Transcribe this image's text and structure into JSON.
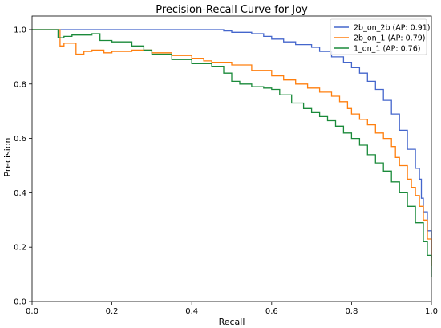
{
  "chart_data": {
    "type": "line",
    "title": "Precision-Recall Curve for Joy",
    "xlabel": "Recall",
    "ylabel": "Precision",
    "xlim": [
      0.0,
      1.0
    ],
    "ylim": [
      0.0,
      1.05
    ],
    "xticks": [
      "0.0",
      "0.2",
      "0.4",
      "0.6",
      "0.8",
      "1.0"
    ],
    "yticks": [
      "0.0",
      "0.2",
      "0.4",
      "0.6",
      "0.8",
      "1.0"
    ],
    "grid": false,
    "legend_position": "top-right",
    "series": [
      {
        "name": "2b_on_2b (AP: 0.91)",
        "color": "#4466cc",
        "points": [
          [
            0.0,
            1.0
          ],
          [
            0.1,
            1.0
          ],
          [
            0.2,
            1.0
          ],
          [
            0.3,
            1.0
          ],
          [
            0.4,
            1.0
          ],
          [
            0.45,
            1.0
          ],
          [
            0.48,
            0.995
          ],
          [
            0.5,
            0.99
          ],
          [
            0.55,
            0.985
          ],
          [
            0.58,
            0.975
          ],
          [
            0.6,
            0.965
          ],
          [
            0.63,
            0.955
          ],
          [
            0.66,
            0.945
          ],
          [
            0.7,
            0.935
          ],
          [
            0.72,
            0.92
          ],
          [
            0.75,
            0.9
          ],
          [
            0.78,
            0.88
          ],
          [
            0.8,
            0.86
          ],
          [
            0.82,
            0.84
          ],
          [
            0.84,
            0.81
          ],
          [
            0.86,
            0.78
          ],
          [
            0.88,
            0.74
          ],
          [
            0.9,
            0.69
          ],
          [
            0.92,
            0.63
          ],
          [
            0.94,
            0.56
          ],
          [
            0.96,
            0.49
          ],
          [
            0.97,
            0.45
          ],
          [
            0.975,
            0.38
          ],
          [
            0.98,
            0.33
          ],
          [
            0.99,
            0.26
          ],
          [
            1.0,
            0.16
          ]
        ]
      },
      {
        "name": "2b_on_1 (AP: 0.79)",
        "color": "#ff7f0e",
        "points": [
          [
            0.0,
            1.0
          ],
          [
            0.055,
            1.0
          ],
          [
            0.07,
            0.94
          ],
          [
            0.08,
            0.95
          ],
          [
            0.1,
            0.95
          ],
          [
            0.11,
            0.91
          ],
          [
            0.13,
            0.92
          ],
          [
            0.15,
            0.925
          ],
          [
            0.18,
            0.915
          ],
          [
            0.2,
            0.92
          ],
          [
            0.25,
            0.925
          ],
          [
            0.3,
            0.915
          ],
          [
            0.35,
            0.905
          ],
          [
            0.4,
            0.895
          ],
          [
            0.43,
            0.885
          ],
          [
            0.45,
            0.88
          ],
          [
            0.5,
            0.87
          ],
          [
            0.55,
            0.85
          ],
          [
            0.6,
            0.83
          ],
          [
            0.63,
            0.815
          ],
          [
            0.66,
            0.8
          ],
          [
            0.69,
            0.785
          ],
          [
            0.72,
            0.77
          ],
          [
            0.75,
            0.755
          ],
          [
            0.77,
            0.735
          ],
          [
            0.79,
            0.71
          ],
          [
            0.8,
            0.69
          ],
          [
            0.82,
            0.67
          ],
          [
            0.84,
            0.65
          ],
          [
            0.86,
            0.62
          ],
          [
            0.88,
            0.6
          ],
          [
            0.9,
            0.57
          ],
          [
            0.91,
            0.53
          ],
          [
            0.92,
            0.5
          ],
          [
            0.94,
            0.45
          ],
          [
            0.95,
            0.42
          ],
          [
            0.96,
            0.39
          ],
          [
            0.97,
            0.35
          ],
          [
            0.98,
            0.3
          ],
          [
            0.99,
            0.23
          ],
          [
            1.0,
            0.13
          ]
        ]
      },
      {
        "name": "1_on_1 (AP: 0.76)",
        "color": "#1a8a3a",
        "points": [
          [
            0.0,
            1.0
          ],
          [
            0.06,
            1.0
          ],
          [
            0.065,
            0.97
          ],
          [
            0.08,
            0.975
          ],
          [
            0.1,
            0.98
          ],
          [
            0.15,
            0.985
          ],
          [
            0.17,
            0.96
          ],
          [
            0.2,
            0.955
          ],
          [
            0.25,
            0.94
          ],
          [
            0.28,
            0.925
          ],
          [
            0.3,
            0.91
          ],
          [
            0.35,
            0.89
          ],
          [
            0.4,
            0.875
          ],
          [
            0.45,
            0.865
          ],
          [
            0.48,
            0.84
          ],
          [
            0.5,
            0.81
          ],
          [
            0.52,
            0.8
          ],
          [
            0.55,
            0.79
          ],
          [
            0.58,
            0.785
          ],
          [
            0.6,
            0.78
          ],
          [
            0.62,
            0.76
          ],
          [
            0.65,
            0.73
          ],
          [
            0.68,
            0.71
          ],
          [
            0.7,
            0.695
          ],
          [
            0.72,
            0.68
          ],
          [
            0.74,
            0.665
          ],
          [
            0.76,
            0.645
          ],
          [
            0.78,
            0.62
          ],
          [
            0.8,
            0.6
          ],
          [
            0.82,
            0.575
          ],
          [
            0.84,
            0.54
          ],
          [
            0.86,
            0.51
          ],
          [
            0.88,
            0.48
          ],
          [
            0.9,
            0.44
          ],
          [
            0.92,
            0.4
          ],
          [
            0.94,
            0.35
          ],
          [
            0.96,
            0.29
          ],
          [
            0.98,
            0.22
          ],
          [
            0.99,
            0.17
          ],
          [
            1.0,
            0.09
          ]
        ]
      }
    ]
  }
}
